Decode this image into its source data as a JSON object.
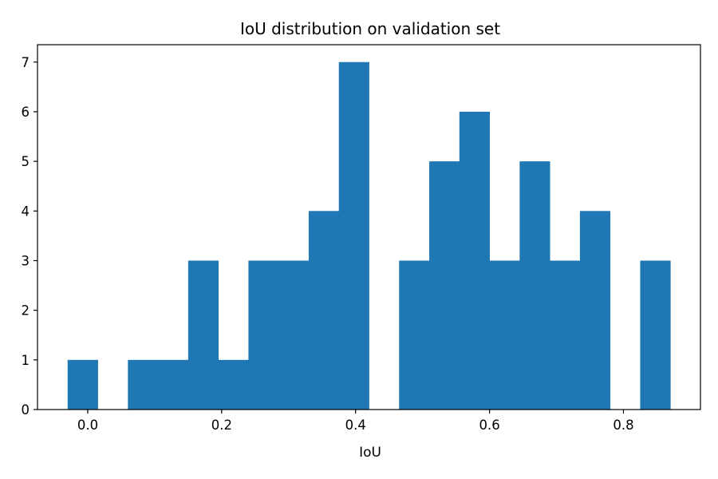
{
  "chart_data": {
    "type": "bar",
    "title": "IoU distribution on validation set",
    "xlabel": "IoU",
    "ylabel": "",
    "bin_width": 0.045,
    "bins": [
      {
        "start": -0.03,
        "end": 0.015,
        "count": 1
      },
      {
        "start": 0.015,
        "end": 0.06,
        "count": 0
      },
      {
        "start": 0.06,
        "end": 0.105,
        "count": 1
      },
      {
        "start": 0.105,
        "end": 0.15,
        "count": 1
      },
      {
        "start": 0.15,
        "end": 0.195,
        "count": 3
      },
      {
        "start": 0.195,
        "end": 0.24,
        "count": 1
      },
      {
        "start": 0.24,
        "end": 0.285,
        "count": 3
      },
      {
        "start": 0.285,
        "end": 0.33,
        "count": 3
      },
      {
        "start": 0.33,
        "end": 0.375,
        "count": 4
      },
      {
        "start": 0.375,
        "end": 0.42,
        "count": 7
      },
      {
        "start": 0.42,
        "end": 0.465,
        "count": 0
      },
      {
        "start": 0.465,
        "end": 0.51,
        "count": 3
      },
      {
        "start": 0.51,
        "end": 0.555,
        "count": 5
      },
      {
        "start": 0.555,
        "end": 0.6,
        "count": 6
      },
      {
        "start": 0.6,
        "end": 0.645,
        "count": 3
      },
      {
        "start": 0.645,
        "end": 0.69,
        "count": 5
      },
      {
        "start": 0.69,
        "end": 0.735,
        "count": 3
      },
      {
        "start": 0.735,
        "end": 0.78,
        "count": 4
      },
      {
        "start": 0.78,
        "end": 0.825,
        "count": 0
      },
      {
        "start": 0.825,
        "end": 0.87,
        "count": 3
      }
    ],
    "xlim": [
      -0.075,
      0.915
    ],
    "ylim": [
      0,
      7.35
    ],
    "xticks": [
      0.0,
      0.2,
      0.4,
      0.6,
      0.8
    ],
    "xtick_labels": [
      "0.0",
      "0.2",
      "0.4",
      "0.6",
      "0.8"
    ],
    "yticks": [
      0,
      1,
      2,
      3,
      4,
      5,
      6,
      7
    ],
    "ytick_labels": [
      "0",
      "1",
      "2",
      "3",
      "4",
      "5",
      "6",
      "7"
    ],
    "grid": false,
    "legend": "none",
    "colors": {
      "bar": "#1f77b4",
      "axes": "#000000"
    }
  }
}
